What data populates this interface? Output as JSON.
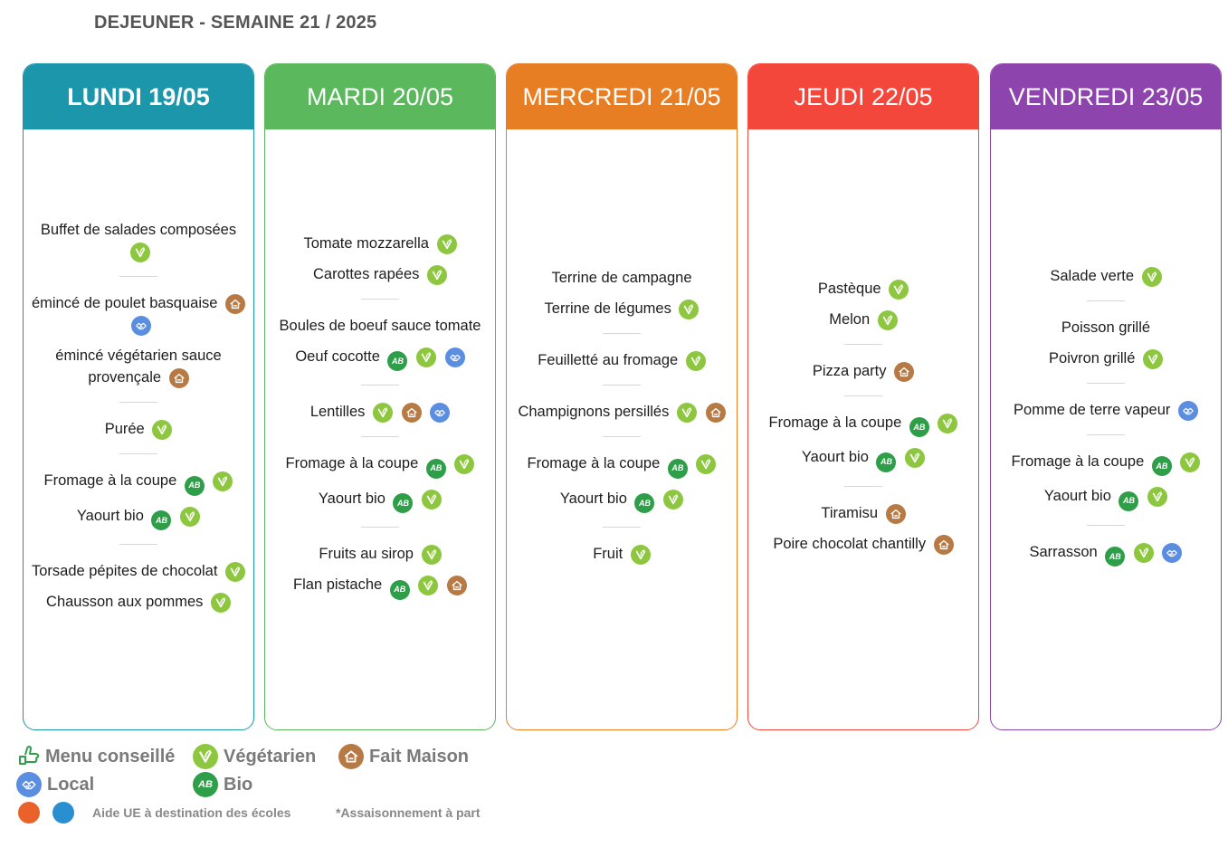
{
  "page": {
    "title": "DEJEUNER - SEMAINE 21 / 2025"
  },
  "days": [
    {
      "label": "LUNDI 19/05",
      "color": "#1c96aa",
      "bold": true,
      "groups": [
        [
          {
            "name": "Buffet de salades composées",
            "icons": [
              "veg"
            ]
          }
        ],
        [
          {
            "name": "émincé de poulet basquaise",
            "icons": [
              "fm",
              "loc"
            ]
          },
          {
            "name": "émincé végétarien sauce provençale",
            "icons": [
              "fm"
            ]
          }
        ],
        [
          {
            "name": "Purée",
            "icons": [
              "veg"
            ]
          }
        ],
        [
          {
            "name": "Fromage à la coupe",
            "icons": [
              "bio",
              "veg"
            ]
          },
          {
            "name": "Yaourt bio",
            "icons": [
              "bio",
              "veg"
            ]
          }
        ],
        [
          {
            "name": "Torsade pépites de chocolat",
            "icons": [
              "veg"
            ]
          },
          {
            "name": "Chausson aux pommes",
            "icons": [
              "veg"
            ]
          }
        ]
      ]
    },
    {
      "label": "MARDI 20/05",
      "color": "#5cb85c",
      "bold": false,
      "groups": [
        [
          {
            "name": "Tomate mozzarella",
            "icons": [
              "veg"
            ]
          },
          {
            "name": "Carottes rapées",
            "icons": [
              "veg"
            ]
          }
        ],
        [
          {
            "name": "Boules de boeuf sauce tomate",
            "icons": []
          },
          {
            "name": "Oeuf cocotte",
            "icons": [
              "bio",
              "veg",
              "loc"
            ]
          }
        ],
        [
          {
            "name": "Lentilles",
            "icons": [
              "veg",
              "fm",
              "loc"
            ]
          }
        ],
        [
          {
            "name": "Fromage à la coupe",
            "icons": [
              "bio",
              "veg"
            ]
          },
          {
            "name": "Yaourt bio",
            "icons": [
              "bio",
              "veg"
            ]
          }
        ],
        [
          {
            "name": "Fruits au sirop",
            "icons": [
              "veg"
            ]
          },
          {
            "name": "Flan pistache",
            "icons": [
              "bio",
              "veg",
              "fm"
            ]
          }
        ]
      ]
    },
    {
      "label": "MERCREDI 21/05",
      "color": "#e87e24",
      "bold": false,
      "groups": [
        [
          {
            "name": "Terrine de campagne",
            "icons": []
          },
          {
            "name": "Terrine de légumes",
            "icons": [
              "veg"
            ]
          }
        ],
        [
          {
            "name": "Feuilletté au fromage",
            "icons": [
              "veg"
            ]
          }
        ],
        [
          {
            "name": "Champignons persillés",
            "icons": [
              "veg",
              "fm"
            ]
          }
        ],
        [
          {
            "name": "Fromage à la coupe",
            "icons": [
              "bio",
              "veg"
            ]
          },
          {
            "name": "Yaourt bio",
            "icons": [
              "bio",
              "veg"
            ]
          }
        ],
        [
          {
            "name": "Fruit",
            "icons": [
              "veg"
            ]
          }
        ]
      ]
    },
    {
      "label": "JEUDI 22/05",
      "color": "#f4473b",
      "bold": false,
      "groups": [
        [
          {
            "name": "Pastèque",
            "icons": [
              "veg"
            ]
          },
          {
            "name": "Melon",
            "icons": [
              "veg"
            ]
          }
        ],
        [
          {
            "name": "Pizza party",
            "icons": [
              "fm"
            ]
          }
        ],
        [
          {
            "name": "Fromage à la coupe",
            "icons": [
              "bio",
              "veg"
            ]
          },
          {
            "name": "Yaourt bio",
            "icons": [
              "bio",
              "veg"
            ]
          }
        ],
        [
          {
            "name": "Tiramisu",
            "icons": [
              "fm"
            ]
          },
          {
            "name": "Poire chocolat chantilly",
            "icons": [
              "fm"
            ]
          }
        ]
      ]
    },
    {
      "label": "VENDREDI 23/05",
      "color": "#8e44ad",
      "bold": false,
      "groups": [
        [
          {
            "name": "Salade verte",
            "icons": [
              "veg"
            ]
          }
        ],
        [
          {
            "name": "Poisson grillé",
            "icons": []
          },
          {
            "name": "Poivron grillé",
            "icons": [
              "veg"
            ]
          }
        ],
        [
          {
            "name": "Pomme de terre vapeur",
            "icons": [
              "loc"
            ]
          }
        ],
        [
          {
            "name": "Fromage à la coupe",
            "icons": [
              "bio",
              "veg"
            ]
          },
          {
            "name": "Yaourt bio",
            "icons": [
              "bio",
              "veg"
            ]
          }
        ],
        [
          {
            "name": "Sarrasson",
            "icons": [
              "bio",
              "veg",
              "loc"
            ]
          }
        ]
      ]
    }
  ],
  "icon_names": {
    "veg": "vegetarian-icon",
    "bio": "bio-icon",
    "fm": "fait-maison-icon",
    "loc": "local-icon",
    "menu": "menu-conseille-icon"
  },
  "icon_colors": {
    "veg": "#8dc63f",
    "bio": "#2e9e48",
    "fm": "#b77a45",
    "loc": "#5b8de0",
    "menu": "#2e9e48"
  },
  "legend": {
    "menu_conseille": "Menu conseillé",
    "vegetarien": "Végétarien",
    "fait_maison": "Fait Maison",
    "local": "Local",
    "bio": "Bio",
    "bio_badge": "AB"
  },
  "footer": {
    "aide_ue": "Aide UE à destination des écoles",
    "assaisonnement": "*Assaisonnement à part"
  }
}
